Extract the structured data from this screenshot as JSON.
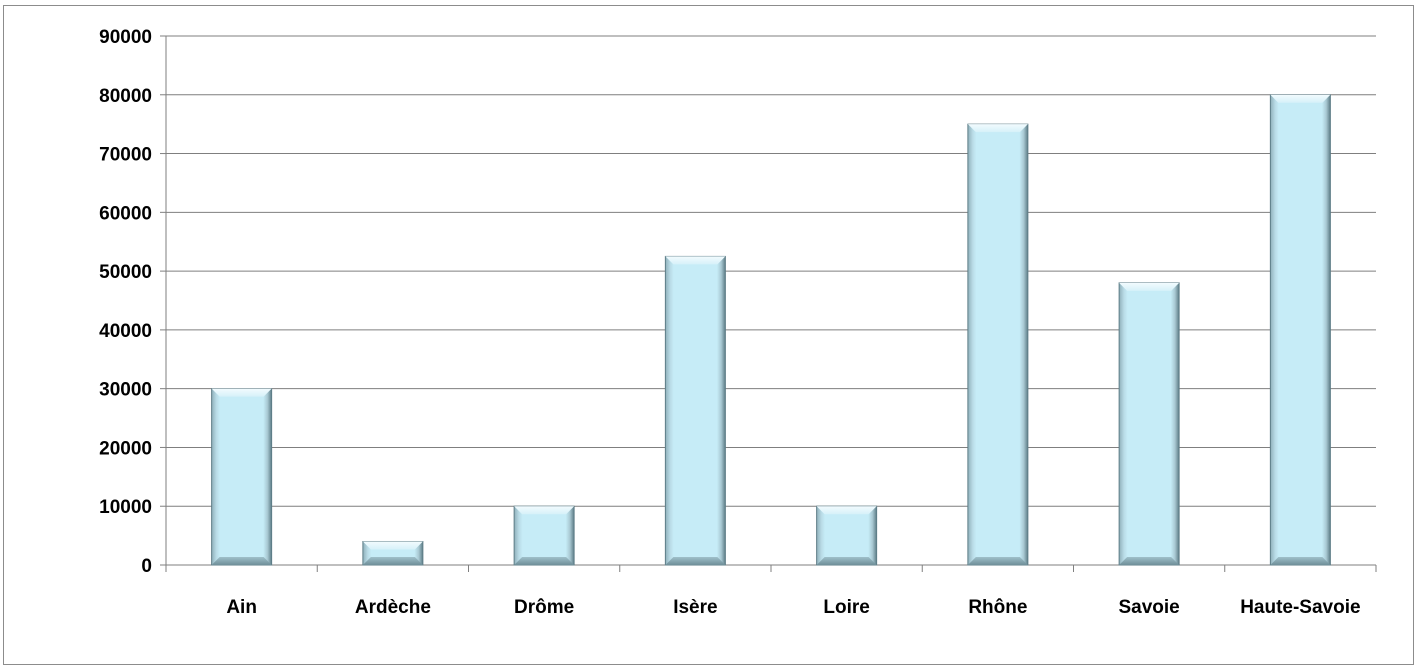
{
  "chart_data": {
    "type": "bar",
    "title": "",
    "xlabel": "",
    "ylabel": "",
    "categories": [
      "Ain",
      "Ardèche",
      "Drôme",
      "Isère",
      "Loire",
      "Rhône",
      "Savoie",
      "Haute-Savoie"
    ],
    "values": [
      30000,
      4000,
      10000,
      52500,
      10000,
      75000,
      48000,
      80000
    ],
    "ylim": [
      0,
      90000
    ],
    "yticks": [
      "0",
      "10000",
      "20000",
      "30000",
      "40000",
      "50000",
      "60000",
      "70000",
      "80000",
      "90000"
    ],
    "grid": true,
    "legend": "none",
    "colors": {
      "bar_face": "#c2e9f4",
      "bar_edge_dark": "#5e7d87",
      "bar_highlight": "#e8f7fc",
      "gridline": "#7f7f7f",
      "axis": "#7f7f7f"
    }
  }
}
